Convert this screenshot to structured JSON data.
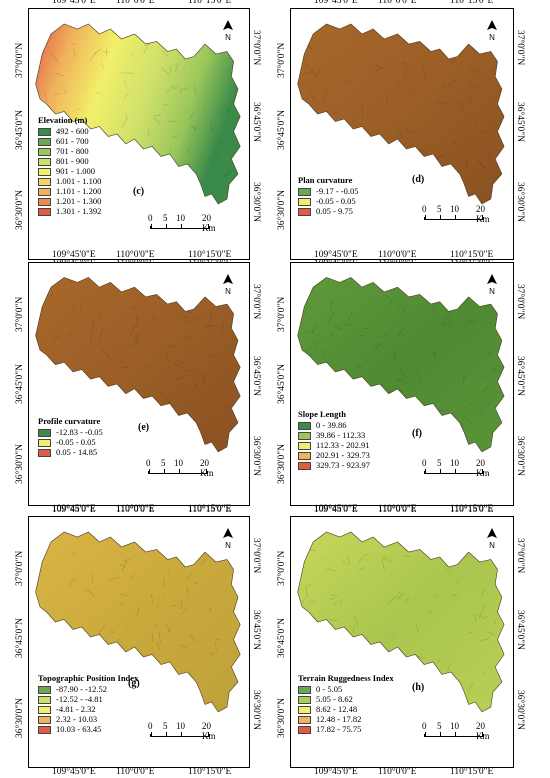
{
  "panels": [
    {
      "id": "c",
      "label": "(c)",
      "legend_title": "Elevation (m)",
      "legend": [
        {
          "label": "492 - 600",
          "color": "#3a8a4a"
        },
        {
          "label": "601 - 700",
          "color": "#6aa84f"
        },
        {
          "label": "701 - 800",
          "color": "#9ac65a"
        },
        {
          "label": "801 - 900",
          "color": "#cde06a"
        },
        {
          "label": "901 - 1.000",
          "color": "#f2ef6a"
        },
        {
          "label": "1.001 - 1.100",
          "color": "#f4d465"
        },
        {
          "label": "1.101 - 1.200",
          "color": "#f0b25a"
        },
        {
          "label": "1.201 - 1.300",
          "color": "#ea8b52"
        },
        {
          "label": "1.301 - 1.392",
          "color": "#e25a4a"
        }
      ],
      "map_style": "elevation",
      "top_ticks": [
        "109°45'0\"E",
        "110°0'0\"E",
        "110°15'0\"E"
      ],
      "bottom_ticks": [
        "109°45'0\"E",
        "110°0'0\"E",
        "110°15'0\"E"
      ],
      "left_ticks": [
        "37°0'0\"N",
        "36°45'0\"N",
        "36°30'0\"N"
      ],
      "right_ticks": [
        "37°0'0\"N",
        "36°45'0\"N",
        "36°30'0\"N"
      ],
      "scale": [
        "0",
        "5",
        "10",
        "20 Km"
      ]
    },
    {
      "id": "d",
      "label": "(d)",
      "legend_title": "Plan curvature",
      "legend": [
        {
          "label": "-9.17 - -0.05",
          "color": "#6aa84f"
        },
        {
          "label": "-0.05 - 0.05",
          "color": "#f2ef6a"
        },
        {
          "label": "0.05 - 9.75",
          "color": "#e25a4a"
        }
      ],
      "map_style": "brown",
      "top_ticks": [
        "109°45'0\"E",
        "110°0'0\"E",
        "110°15'0\"E"
      ],
      "bottom_ticks": [
        "109°45'0\"E",
        "110°0'0\"E",
        "110°15'0\"E"
      ],
      "left_ticks": [
        "37°0'0\"N",
        "36°45'0\"N",
        "36°30'0\"N"
      ],
      "right_ticks": [
        "37°0'0\"N",
        "36°45'0\"N",
        "36°30'0\"N"
      ],
      "scale": [
        "0",
        "5",
        "10",
        "20 Km"
      ]
    },
    {
      "id": "e",
      "label": "(e)",
      "legend_title": "Profile curvature",
      "legend": [
        {
          "label": "-12.83 - -0.05",
          "color": "#3a8a4a"
        },
        {
          "label": "-0.05 - 0.05",
          "color": "#f2ef6a"
        },
        {
          "label": "0.05 - 14.85",
          "color": "#e25a4a"
        }
      ],
      "map_style": "brown",
      "top_ticks": [
        "109°45'0\"E",
        "110°0'0\"E",
        "110°15'0\"E"
      ],
      "bottom_ticks": [
        "109°45'0\"E",
        "110°0'0\"E",
        "110°15'0\"E"
      ],
      "left_ticks": [
        "37°0'0\"N",
        "36°45'0\"N",
        "36°30'0\"N"
      ],
      "right_ticks": [
        "37°0'0\"N",
        "36°45'0\"N",
        "36°30'0\"N"
      ],
      "scale": [
        "0",
        "5",
        "10",
        "20 Km"
      ]
    },
    {
      "id": "f",
      "label": "(f)",
      "legend_title": "Slope Length",
      "legend": [
        {
          "label": "0 - 39.86",
          "color": "#3a8a4a"
        },
        {
          "label": "39.86 - 112.33",
          "color": "#9ac65a"
        },
        {
          "label": "112.33 - 202.91",
          "color": "#f2ef6a"
        },
        {
          "label": "202.91 - 329.73",
          "color": "#f0b25a"
        },
        {
          "label": "329.73 - 923.97",
          "color": "#e25a4a"
        }
      ],
      "map_style": "green",
      "top_ticks": [
        "109°45'0\"E",
        "110°0'0\"E",
        "110°15'0\"E"
      ],
      "bottom_ticks": [
        "109°45'0\"E",
        "110°0'0\"E",
        "110°15'0\"E"
      ],
      "left_ticks": [
        "37°0'0\"N",
        "36°45'0\"N",
        "36°30'0\"N"
      ],
      "right_ticks": [
        "37°0'0\"N",
        "36°45'0\"N",
        "36°30'0\"N"
      ],
      "scale": [
        "0",
        "5",
        "10",
        "20 Km"
      ]
    },
    {
      "id": "g",
      "label": "(g)",
      "legend_title": "Topographic Position Index",
      "legend": [
        {
          "label": "-87.90 - -12.52",
          "color": "#6aa84f"
        },
        {
          "label": "-12.52 - -4.81",
          "color": "#cde06a"
        },
        {
          "label": "-4.81 - 2.32",
          "color": "#f2ef6a"
        },
        {
          "label": "2.32 - 10.03",
          "color": "#f0b25a"
        },
        {
          "label": "10.03 - 63.45",
          "color": "#e25a4a"
        }
      ],
      "map_style": "tpi",
      "top_ticks": [
        "109°45'0\"E",
        "110°0'0\"E",
        "110°15'0\"E"
      ],
      "bottom_ticks": [
        "109°45'0\"E",
        "110°0'0\"E",
        "110°15'0\"E"
      ],
      "left_ticks": [
        "37°0'0\"N",
        "36°45'0\"N",
        "36°30'0\"N"
      ],
      "right_ticks": [
        "37°0'0\"N",
        "36°45'0\"N",
        "36°30'0\"N"
      ],
      "scale": [
        "0",
        "5",
        "10",
        "20 Km"
      ]
    },
    {
      "id": "h",
      "label": "(h)",
      "legend_title": "Terrain Ruggedness Index",
      "legend": [
        {
          "label": "0 - 5.05",
          "color": "#6aa84f"
        },
        {
          "label": "5.05 - 8.62",
          "color": "#a9cf5a"
        },
        {
          "label": "8.62 - 12.48",
          "color": "#f2ef6a"
        },
        {
          "label": "12.48 - 17.82",
          "color": "#f0b25a"
        },
        {
          "label": "17.82 - 75.75",
          "color": "#e25a4a"
        }
      ],
      "map_style": "tri",
      "top_ticks": [
        "109°45'0\"E",
        "110°0'0\"E",
        "110°15'0\"E"
      ],
      "bottom_ticks": [
        "109°45'0\"E",
        "110°0'0\"E",
        "110°15'0\"E"
      ],
      "left_ticks": [
        "37°0'0\"N",
        "36°45'0\"N",
        "36°30'0\"N"
      ],
      "right_ticks": [
        "37°0'0\"N",
        "36°45'0\"N",
        "36°30'0\"N"
      ],
      "scale": [
        "0",
        "5",
        "10",
        "20 Km"
      ]
    }
  ],
  "north_arrow_icon": "north-arrow-icon"
}
